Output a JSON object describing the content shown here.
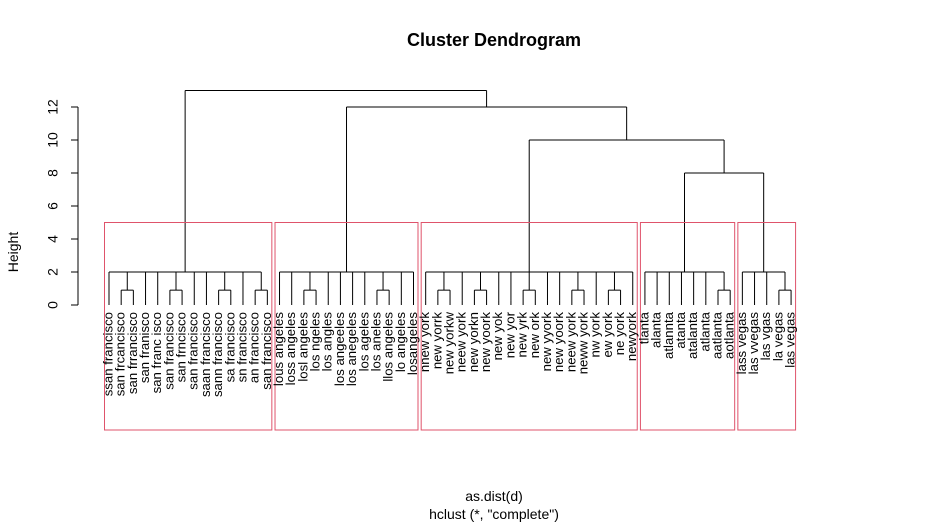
{
  "chart_data": {
    "type": "dendrogram",
    "title": "Cluster Dendrogram",
    "ylabel": "Height",
    "xlabel": "as.dist(d)",
    "sublabel": "hclust (*, \"complete\")",
    "yticks": [
      0,
      2,
      4,
      6,
      8,
      10,
      12
    ],
    "ylim": [
      0,
      13
    ],
    "colors": {
      "branch": "#000000",
      "cluster_rect": "#DF536B"
    },
    "leaves": [
      "ssan francisco",
      "san frcancisco",
      "san frrancisco",
      "san franisco",
      "san franc isco",
      "san francisco",
      "san frncisco",
      "san  francisco",
      "saan francisco",
      "sann francisco",
      "sa francisco",
      "sn francisco",
      "an francisco",
      "san francisco",
      "lous angeles",
      "loss angeles",
      "losl angeles",
      "los ngeles",
      "los angles",
      "los angeeles",
      "los anegeles",
      "los ageles",
      "los aneles",
      "llos angeles",
      "lo angeles",
      "losangeles",
      "nnew york",
      "new yorrk",
      "new yorkw",
      "neew york",
      "new yorkn",
      "new yoork",
      "new yok",
      "new yor",
      "new yrk",
      "new ork",
      "new yyork",
      "new yoork",
      "neew york",
      "neww york",
      "nw york",
      "ew york",
      "ne york",
      "newyork",
      "tlanta",
      "alanta",
      "atlannta",
      "atanta",
      "atalanta",
      "atlanta",
      "aatlanta",
      "aotlanta",
      "lass vegas",
      "las vvegas",
      "las vgas",
      "la vegas",
      "las vegas"
    ],
    "merges": [
      {
        "height": 13,
        "left": "cluster: san francisco",
        "right": "cluster: rest"
      },
      {
        "height": 12,
        "left": "cluster: los angeles",
        "right": "cluster: new york / atlanta / las vegas"
      },
      {
        "height": 10,
        "left": "cluster: new york",
        "right": "cluster: atlanta / las vegas"
      },
      {
        "height": 8,
        "left": "cluster: atlanta",
        "right": "cluster: las vegas"
      }
    ],
    "clusters": [
      {
        "name": "san francisco",
        "size": 14
      },
      {
        "name": "los angeles",
        "size": 12
      },
      {
        "name": "new york",
        "size": 18
      },
      {
        "name": "atlanta",
        "size": 8
      },
      {
        "name": "las vegas",
        "size": 5
      }
    ],
    "cut_height": 5
  }
}
